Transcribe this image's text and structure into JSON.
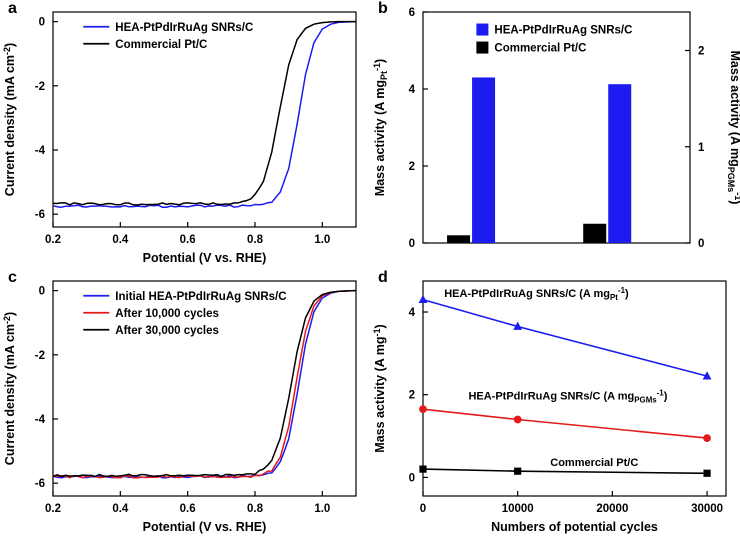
{
  "page": {
    "background": "#ffffff"
  },
  "colors": {
    "blue": "#1c1cf0",
    "red": "#e41a1a",
    "black": "#000000"
  },
  "panels": [
    {
      "label": "a"
    },
    {
      "label": "b"
    },
    {
      "label": "c"
    },
    {
      "label": "d"
    }
  ],
  "chart_data": [
    {
      "panel": "a",
      "type": "line",
      "xlabel": "Potential (V vs. RHE)",
      "ylabel": "Current density (mA cm^{-2})",
      "xlim": [
        0.2,
        1.1
      ],
      "ylim": [
        -6.4,
        0.3
      ],
      "xticks": [
        0.2,
        0.4,
        0.6,
        0.8,
        1.0
      ],
      "xtick_labels": [
        "0.2",
        "0.4",
        "0.6",
        "0.8",
        "1.0"
      ],
      "yticks": [
        0,
        -2,
        -4,
        -6
      ],
      "ytick_labels": [
        "0",
        "-2",
        "-4",
        "-6"
      ],
      "legend": {
        "x": 0.1,
        "y": 0.05
      },
      "series": [
        {
          "name": "HEA-PtPdIrRuAg SNRs/C",
          "color": "blue",
          "noise": true,
          "half_wave_potential_V": 0.93,
          "limiting_current": -5.75,
          "x": [
            0.2,
            0.3,
            0.4,
            0.5,
            0.6,
            0.65,
            0.7,
            0.725,
            0.75,
            0.775,
            0.8,
            0.825,
            0.85,
            0.875,
            0.9,
            0.925,
            0.95,
            0.975,
            1.0,
            1.025,
            1.05,
            1.075,
            1.1
          ],
          "y": [
            -5.75,
            -5.75,
            -5.75,
            -5.75,
            -5.75,
            -5.75,
            -5.75,
            -5.75,
            -5.75,
            -5.74,
            -5.73,
            -5.7,
            -5.6,
            -5.31,
            -4.58,
            -3.2,
            -1.65,
            -0.66,
            -0.23,
            -0.08,
            -0.02,
            -0.01,
            0
          ]
        },
        {
          "name": "Commercial Pt/C",
          "color": "black",
          "noise": true,
          "half_wave_potential_V": 0.872,
          "limiting_current": -5.68,
          "x": [
            0.2,
            0.3,
            0.4,
            0.5,
            0.6,
            0.65,
            0.7,
            0.725,
            0.75,
            0.775,
            0.8,
            0.825,
            0.85,
            0.875,
            0.9,
            0.925,
            0.95,
            0.975,
            1.0,
            1.025,
            1.05,
            1.075,
            1.1
          ],
          "y": [
            -5.68,
            -5.68,
            -5.68,
            -5.68,
            -5.68,
            -5.68,
            -5.68,
            -5.67,
            -5.64,
            -5.58,
            -5.41,
            -4.98,
            -4.06,
            -2.66,
            -1.35,
            -0.56,
            -0.21,
            -0.08,
            -0.03,
            -0.01,
            0,
            0,
            0
          ]
        }
      ]
    },
    {
      "panel": "b",
      "type": "bar",
      "ylabel_left": "Mass activity (A mg_{Pt}^{-1})",
      "ylabel_right": "Mass activity (A mg_{PGMs}^{-1})",
      "ylim_left": [
        0,
        6
      ],
      "yticks_left": [
        0,
        2,
        4,
        6
      ],
      "ytick_labels_left": [
        "0",
        "2",
        "4",
        "6"
      ],
      "ylim_right": [
        0,
        2.4
      ],
      "yticks_right": [
        0,
        1,
        2
      ],
      "ytick_labels_right": [
        "0",
        "1",
        "2"
      ],
      "group_centers": [
        0.18,
        0.69
      ],
      "legend": {
        "x": 0.2,
        "y": 0.05,
        "items": [
          {
            "label": "HEA-PtPdIrRuAg SNRs/C",
            "color": "blue"
          },
          {
            "label": "Commercial Pt/C",
            "color": "black"
          }
        ]
      },
      "groups": [
        {
          "axis": "left",
          "unit": "A mg_Pt^-1",
          "bars": [
            {
              "series": "Commercial Pt/C",
              "color": "black",
              "value": 0.2
            },
            {
              "series": "HEA-PtPdIrRuAg SNRs/C",
              "color": "blue",
              "value": 4.3
            }
          ]
        },
        {
          "axis": "right",
          "unit": "A mg_PGMs^-1",
          "bars": [
            {
              "series": "Commercial Pt/C",
              "color": "black",
              "value": 0.2
            },
            {
              "series": "HEA-PtPdIrRuAg SNRs/C",
              "color": "blue",
              "value": 1.65
            }
          ]
        }
      ]
    },
    {
      "panel": "c",
      "type": "line",
      "xlabel": "Potential (V vs. RHE)",
      "ylabel": "Current density (mA cm^{-2})",
      "xlim": [
        0.2,
        1.1
      ],
      "ylim": [
        -6.4,
        0.3
      ],
      "xticks": [
        0.2,
        0.4,
        0.6,
        0.8,
        1.0
      ],
      "xtick_labels": [
        "0.2",
        "0.4",
        "0.6",
        "0.8",
        "1.0"
      ],
      "yticks": [
        0,
        -2,
        -4,
        -6
      ],
      "ytick_labels": [
        "0",
        "-2",
        "-4",
        "-6"
      ],
      "legend": {
        "x": 0.1,
        "y": 0.05
      },
      "series": [
        {
          "name": "Initial HEA-PtPdIrRuAg SNRs/C",
          "color": "blue",
          "noise": true,
          "half_wave_potential_V": 0.93,
          "limiting_current": -5.8,
          "x": [
            0.2,
            0.3,
            0.4,
            0.5,
            0.6,
            0.65,
            0.7,
            0.725,
            0.75,
            0.775,
            0.8,
            0.825,
            0.85,
            0.875,
            0.9,
            0.925,
            0.95,
            0.975,
            1.0,
            1.025,
            1.05,
            1.075,
            1.1
          ],
          "y": [
            -5.8,
            -5.8,
            -5.8,
            -5.8,
            -5.8,
            -5.8,
            -5.8,
            -5.8,
            -5.8,
            -5.79,
            -5.78,
            -5.75,
            -5.65,
            -5.36,
            -4.62,
            -3.23,
            -1.67,
            -0.66,
            -0.23,
            -0.08,
            -0.02,
            -0.01,
            0
          ]
        },
        {
          "name": "After 10,000 cycles",
          "color": "red",
          "noise": true,
          "half_wave_potential_V": 0.922,
          "limiting_current": -5.8,
          "x": [
            0.2,
            0.3,
            0.4,
            0.5,
            0.6,
            0.65,
            0.7,
            0.725,
            0.75,
            0.775,
            0.8,
            0.825,
            0.85,
            0.875,
            0.9,
            0.925,
            0.95,
            0.975,
            1.0,
            1.025,
            1.05,
            1.075,
            1.1
          ],
          "y": [
            -5.8,
            -5.8,
            -5.8,
            -5.8,
            -5.8,
            -5.8,
            -5.8,
            -5.8,
            -5.8,
            -5.79,
            -5.78,
            -5.73,
            -5.59,
            -5.19,
            -4.24,
            -2.7,
            -1.27,
            -0.48,
            -0.16,
            -0.06,
            -0.02,
            -0.01,
            0
          ]
        },
        {
          "name": "After 30,000 cycles",
          "color": "black",
          "noise": true,
          "half_wave_potential_V": 0.908,
          "limiting_current": -5.76,
          "x": [
            0.2,
            0.3,
            0.4,
            0.5,
            0.6,
            0.65,
            0.7,
            0.725,
            0.75,
            0.775,
            0.8,
            0.825,
            0.85,
            0.875,
            0.9,
            0.925,
            0.95,
            0.975,
            1.0,
            1.025,
            1.05,
            1.075,
            1.1
          ],
          "y": [
            -5.76,
            -5.76,
            -5.76,
            -5.76,
            -5.76,
            -5.76,
            -5.76,
            -5.76,
            -5.75,
            -5.74,
            -5.7,
            -5.58,
            -5.29,
            -4.6,
            -3.36,
            -1.9,
            -0.85,
            -0.33,
            -0.12,
            -0.05,
            -0.02,
            -0.01,
            0
          ]
        }
      ]
    },
    {
      "panel": "d",
      "type": "line",
      "xlabel": "Numbers of potential cycles",
      "ylabel": "Mass activity (A mg^{-1})",
      "xlim": [
        0,
        32000
      ],
      "ylim": [
        -0.45,
        4.75
      ],
      "xticks": [
        0,
        10000,
        20000,
        30000
      ],
      "xtick_labels": [
        "0",
        "10000",
        "20000",
        "30000"
      ],
      "yticks": [
        0,
        2,
        4
      ],
      "ytick_labels": [
        "0",
        "2",
        "4"
      ],
      "series": [
        {
          "name": "HEA-PtPdIrRuAg SNRs/C (A mg_{Pt}^{-1})",
          "color": "blue",
          "marker": "triangle",
          "label_pos": [
            0.07,
            0.075
          ],
          "x": [
            0,
            10000,
            30000
          ],
          "y": [
            4.3,
            3.65,
            2.45
          ]
        },
        {
          "name": "HEA-PtPdIrRuAg SNRs/C (A mg_{PGMs}^{-1})",
          "color": "red",
          "marker": "circle",
          "label_pos": [
            0.15,
            0.55
          ],
          "x": [
            0,
            10000,
            30000
          ],
          "y": [
            1.65,
            1.4,
            0.95
          ]
        },
        {
          "name": "Commercial Pt/C",
          "color": "black",
          "marker": "square",
          "label_pos": [
            0.42,
            0.86
          ],
          "x": [
            0,
            10000,
            30000
          ],
          "y": [
            0.2,
            0.15,
            0.1
          ]
        }
      ]
    }
  ]
}
